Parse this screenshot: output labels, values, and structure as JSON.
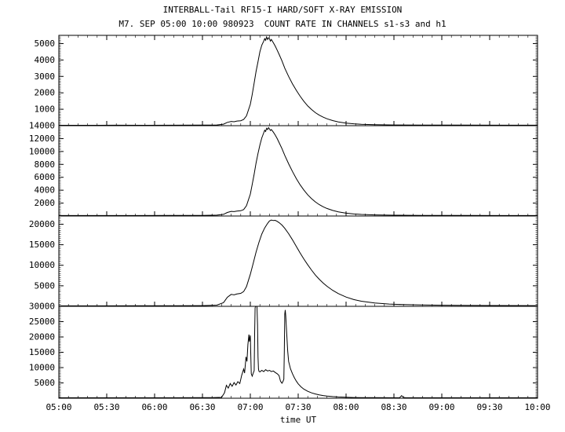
{
  "chart_data": {
    "type": "line",
    "title": "INTERBALL-Tail RF15-I HARD/SOFT X-RAY EMISSION",
    "subtitle": "M7. SEP 05:00 10:00 980923  COUNT RATE IN CHANNELS s1-s3 and h1",
    "xlabel": "time UT",
    "x_range_hours": [
      5,
      10
    ],
    "x_ticks": [
      "05:00",
      "05:30",
      "06:00",
      "06:30",
      "07:00",
      "07:30",
      "08:00",
      "08:30",
      "09:00",
      "09:30",
      "10:00"
    ],
    "line_color": "#000000",
    "legend": "none",
    "grid": "off",
    "panels": [
      {
        "name": "s1",
        "ylim": [
          0,
          5500
        ],
        "ytick_step": 1000,
        "yminor_step": 100,
        "points": [
          [
            5.0,
            25
          ],
          [
            5.3,
            25
          ],
          [
            5.6,
            28
          ],
          [
            5.9,
            25
          ],
          [
            6.2,
            28
          ],
          [
            6.5,
            35
          ],
          [
            6.65,
            45
          ],
          [
            6.72,
            90
          ],
          [
            6.76,
            200
          ],
          [
            6.8,
            260
          ],
          [
            6.83,
            240
          ],
          [
            6.86,
            280
          ],
          [
            6.9,
            300
          ],
          [
            6.93,
            380
          ],
          [
            6.96,
            600
          ],
          [
            7.0,
            1300
          ],
          [
            7.02,
            1900
          ],
          [
            7.04,
            2600
          ],
          [
            7.06,
            3300
          ],
          [
            7.08,
            3900
          ],
          [
            7.1,
            4500
          ],
          [
            7.12,
            4900
          ],
          [
            7.14,
            5150
          ],
          [
            7.15,
            5300
          ],
          [
            7.16,
            5200
          ],
          [
            7.17,
            5400
          ],
          [
            7.18,
            5250
          ],
          [
            7.19,
            5350
          ],
          [
            7.2,
            5300
          ],
          [
            7.21,
            5150
          ],
          [
            7.22,
            5250
          ],
          [
            7.24,
            5050
          ],
          [
            7.26,
            4850
          ],
          [
            7.28,
            4600
          ],
          [
            7.3,
            4350
          ],
          [
            7.33,
            3950
          ],
          [
            7.36,
            3500
          ],
          [
            7.4,
            3000
          ],
          [
            7.44,
            2550
          ],
          [
            7.48,
            2150
          ],
          [
            7.52,
            1800
          ],
          [
            7.56,
            1480
          ],
          [
            7.6,
            1200
          ],
          [
            7.64,
            980
          ],
          [
            7.68,
            790
          ],
          [
            7.72,
            640
          ],
          [
            7.76,
            520
          ],
          [
            7.8,
            420
          ],
          [
            7.86,
            310
          ],
          [
            7.92,
            230
          ],
          [
            8.0,
            160
          ],
          [
            8.08,
            115
          ],
          [
            8.16,
            85
          ],
          [
            8.3,
            60
          ],
          [
            8.5,
            45
          ],
          [
            8.8,
            38
          ],
          [
            9.2,
            32
          ],
          [
            9.6,
            28
          ],
          [
            10.0,
            28
          ]
        ]
      },
      {
        "name": "s2",
        "ylim": [
          0,
          14000
        ],
        "ytick_step": 2000,
        "yminor_step": 250,
        "points": [
          [
            5.0,
            70
          ],
          [
            5.4,
            70
          ],
          [
            5.8,
            75
          ],
          [
            6.2,
            80
          ],
          [
            6.5,
            95
          ],
          [
            6.65,
            130
          ],
          [
            6.72,
            260
          ],
          [
            6.76,
            550
          ],
          [
            6.8,
            720
          ],
          [
            6.83,
            680
          ],
          [
            6.86,
            760
          ],
          [
            6.9,
            820
          ],
          [
            6.93,
            1000
          ],
          [
            6.96,
            1600
          ],
          [
            7.0,
            3400
          ],
          [
            7.02,
            4900
          ],
          [
            7.04,
            6500
          ],
          [
            7.06,
            8200
          ],
          [
            7.08,
            9700
          ],
          [
            7.1,
            11000
          ],
          [
            7.12,
            12100
          ],
          [
            7.14,
            12900
          ],
          [
            7.15,
            13300
          ],
          [
            7.16,
            13100
          ],
          [
            7.17,
            13600
          ],
          [
            7.18,
            13400
          ],
          [
            7.19,
            13700
          ],
          [
            7.2,
            13500
          ],
          [
            7.21,
            13250
          ],
          [
            7.22,
            13400
          ],
          [
            7.24,
            13000
          ],
          [
            7.26,
            12550
          ],
          [
            7.28,
            12000
          ],
          [
            7.3,
            11400
          ],
          [
            7.33,
            10450
          ],
          [
            7.36,
            9400
          ],
          [
            7.4,
            8100
          ],
          [
            7.44,
            6900
          ],
          [
            7.48,
            5800
          ],
          [
            7.52,
            4850
          ],
          [
            7.56,
            4000
          ],
          [
            7.6,
            3280
          ],
          [
            7.64,
            2680
          ],
          [
            7.68,
            2180
          ],
          [
            7.72,
            1770
          ],
          [
            7.76,
            1440
          ],
          [
            7.8,
            1170
          ],
          [
            7.86,
            860
          ],
          [
            7.92,
            640
          ],
          [
            8.0,
            440
          ],
          [
            8.08,
            320
          ],
          [
            8.16,
            240
          ],
          [
            8.3,
            165
          ],
          [
            8.5,
            120
          ],
          [
            8.8,
            95
          ],
          [
            9.2,
            85
          ],
          [
            9.6,
            78
          ],
          [
            10.0,
            75
          ]
        ]
      },
      {
        "name": "s3",
        "ylim": [
          0,
          22000
        ],
        "ytick_step": 5000,
        "yminor_step": 500,
        "points": [
          [
            5.0,
            120
          ],
          [
            5.4,
            120
          ],
          [
            5.8,
            130
          ],
          [
            6.2,
            140
          ],
          [
            6.5,
            170
          ],
          [
            6.65,
            280
          ],
          [
            6.72,
            900
          ],
          [
            6.76,
            2200
          ],
          [
            6.8,
            2900
          ],
          [
            6.83,
            2800
          ],
          [
            6.86,
            3000
          ],
          [
            6.9,
            3150
          ],
          [
            6.93,
            3600
          ],
          [
            6.96,
            4800
          ],
          [
            7.0,
            7800
          ],
          [
            7.03,
            10500
          ],
          [
            7.06,
            13200
          ],
          [
            7.09,
            15600
          ],
          [
            7.12,
            17600
          ],
          [
            7.15,
            19100
          ],
          [
            7.18,
            20200
          ],
          [
            7.2,
            20800
          ],
          [
            7.22,
            21000
          ],
          [
            7.24,
            20900
          ],
          [
            7.26,
            20950
          ],
          [
            7.28,
            20700
          ],
          [
            7.3,
            20400
          ],
          [
            7.33,
            19800
          ],
          [
            7.36,
            19000
          ],
          [
            7.4,
            17700
          ],
          [
            7.44,
            16200
          ],
          [
            7.48,
            14600
          ],
          [
            7.52,
            13000
          ],
          [
            7.56,
            11500
          ],
          [
            7.6,
            10100
          ],
          [
            7.64,
            8800
          ],
          [
            7.68,
            7600
          ],
          [
            7.72,
            6600
          ],
          [
            7.76,
            5700
          ],
          [
            7.8,
            4900
          ],
          [
            7.86,
            3900
          ],
          [
            7.92,
            3100
          ],
          [
            8.0,
            2250
          ],
          [
            8.08,
            1650
          ],
          [
            8.16,
            1250
          ],
          [
            8.3,
            800
          ],
          [
            8.45,
            560
          ],
          [
            8.6,
            430
          ],
          [
            8.8,
            330
          ],
          [
            9.0,
            270
          ],
          [
            9.3,
            220
          ],
          [
            9.6,
            190
          ],
          [
            10.0,
            170
          ]
        ]
      },
      {
        "name": "h1",
        "ylim": [
          0,
          30000
        ],
        "ytick_step": 5000,
        "yminor_step": 500,
        "points": [
          [
            5.0,
            150
          ],
          [
            5.4,
            150
          ],
          [
            5.8,
            160
          ],
          [
            6.2,
            160
          ],
          [
            6.5,
            180
          ],
          [
            6.6,
            200
          ],
          [
            6.7,
            280
          ],
          [
            6.73,
            1800
          ],
          [
            6.75,
            4200
          ],
          [
            6.77,
            3300
          ],
          [
            6.79,
            4800
          ],
          [
            6.81,
            3900
          ],
          [
            6.83,
            5100
          ],
          [
            6.85,
            4300
          ],
          [
            6.87,
            5400
          ],
          [
            6.89,
            4800
          ],
          [
            6.91,
            7500
          ],
          [
            6.93,
            9500
          ],
          [
            6.94,
            8200
          ],
          [
            6.955,
            13500
          ],
          [
            6.965,
            12000
          ],
          [
            6.975,
            17500
          ],
          [
            6.985,
            20800
          ],
          [
            6.99,
            18500
          ],
          [
            7.0,
            20500
          ],
          [
            7.005,
            14000
          ],
          [
            7.01,
            8000
          ],
          [
            7.02,
            7200
          ],
          [
            7.03,
            8200
          ],
          [
            7.04,
            9000
          ],
          [
            7.045,
            21000
          ],
          [
            7.05,
            29500
          ],
          [
            7.055,
            30000
          ],
          [
            7.065,
            30000
          ],
          [
            7.07,
            29800
          ],
          [
            7.075,
            24000
          ],
          [
            7.08,
            13500
          ],
          [
            7.085,
            9500
          ],
          [
            7.09,
            8800
          ],
          [
            7.1,
            8600
          ],
          [
            7.12,
            9100
          ],
          [
            7.14,
            8700
          ],
          [
            7.16,
            9300
          ],
          [
            7.18,
            8900
          ],
          [
            7.2,
            9100
          ],
          [
            7.22,
            8700
          ],
          [
            7.24,
            8900
          ],
          [
            7.26,
            8400
          ],
          [
            7.28,
            8000
          ],
          [
            7.3,
            7400
          ],
          [
            7.315,
            5600
          ],
          [
            7.33,
            4900
          ],
          [
            7.34,
            5400
          ],
          [
            7.35,
            6200
          ],
          [
            7.355,
            15000
          ],
          [
            7.36,
            27500
          ],
          [
            7.365,
            28800
          ],
          [
            7.37,
            27000
          ],
          [
            7.38,
            21000
          ],
          [
            7.39,
            15500
          ],
          [
            7.4,
            12000
          ],
          [
            7.42,
            9600
          ],
          [
            7.44,
            8000
          ],
          [
            7.46,
            6700
          ],
          [
            7.48,
            5600
          ],
          [
            7.5,
            4700
          ],
          [
            7.53,
            3700
          ],
          [
            7.56,
            2950
          ],
          [
            7.6,
            2250
          ],
          [
            7.64,
            1750
          ],
          [
            7.68,
            1380
          ],
          [
            7.72,
            1100
          ],
          [
            7.76,
            880
          ],
          [
            7.8,
            720
          ],
          [
            7.86,
            540
          ],
          [
            7.92,
            410
          ],
          [
            8.0,
            300
          ],
          [
            8.08,
            235
          ],
          [
            8.16,
            200
          ],
          [
            8.3,
            175
          ],
          [
            8.5,
            165
          ],
          [
            8.56,
            160
          ],
          [
            8.58,
            850
          ],
          [
            8.6,
            240
          ],
          [
            8.62,
            170
          ],
          [
            8.8,
            160
          ],
          [
            9.2,
            155
          ],
          [
            9.6,
            150
          ],
          [
            10.0,
            150
          ]
        ]
      }
    ]
  }
}
